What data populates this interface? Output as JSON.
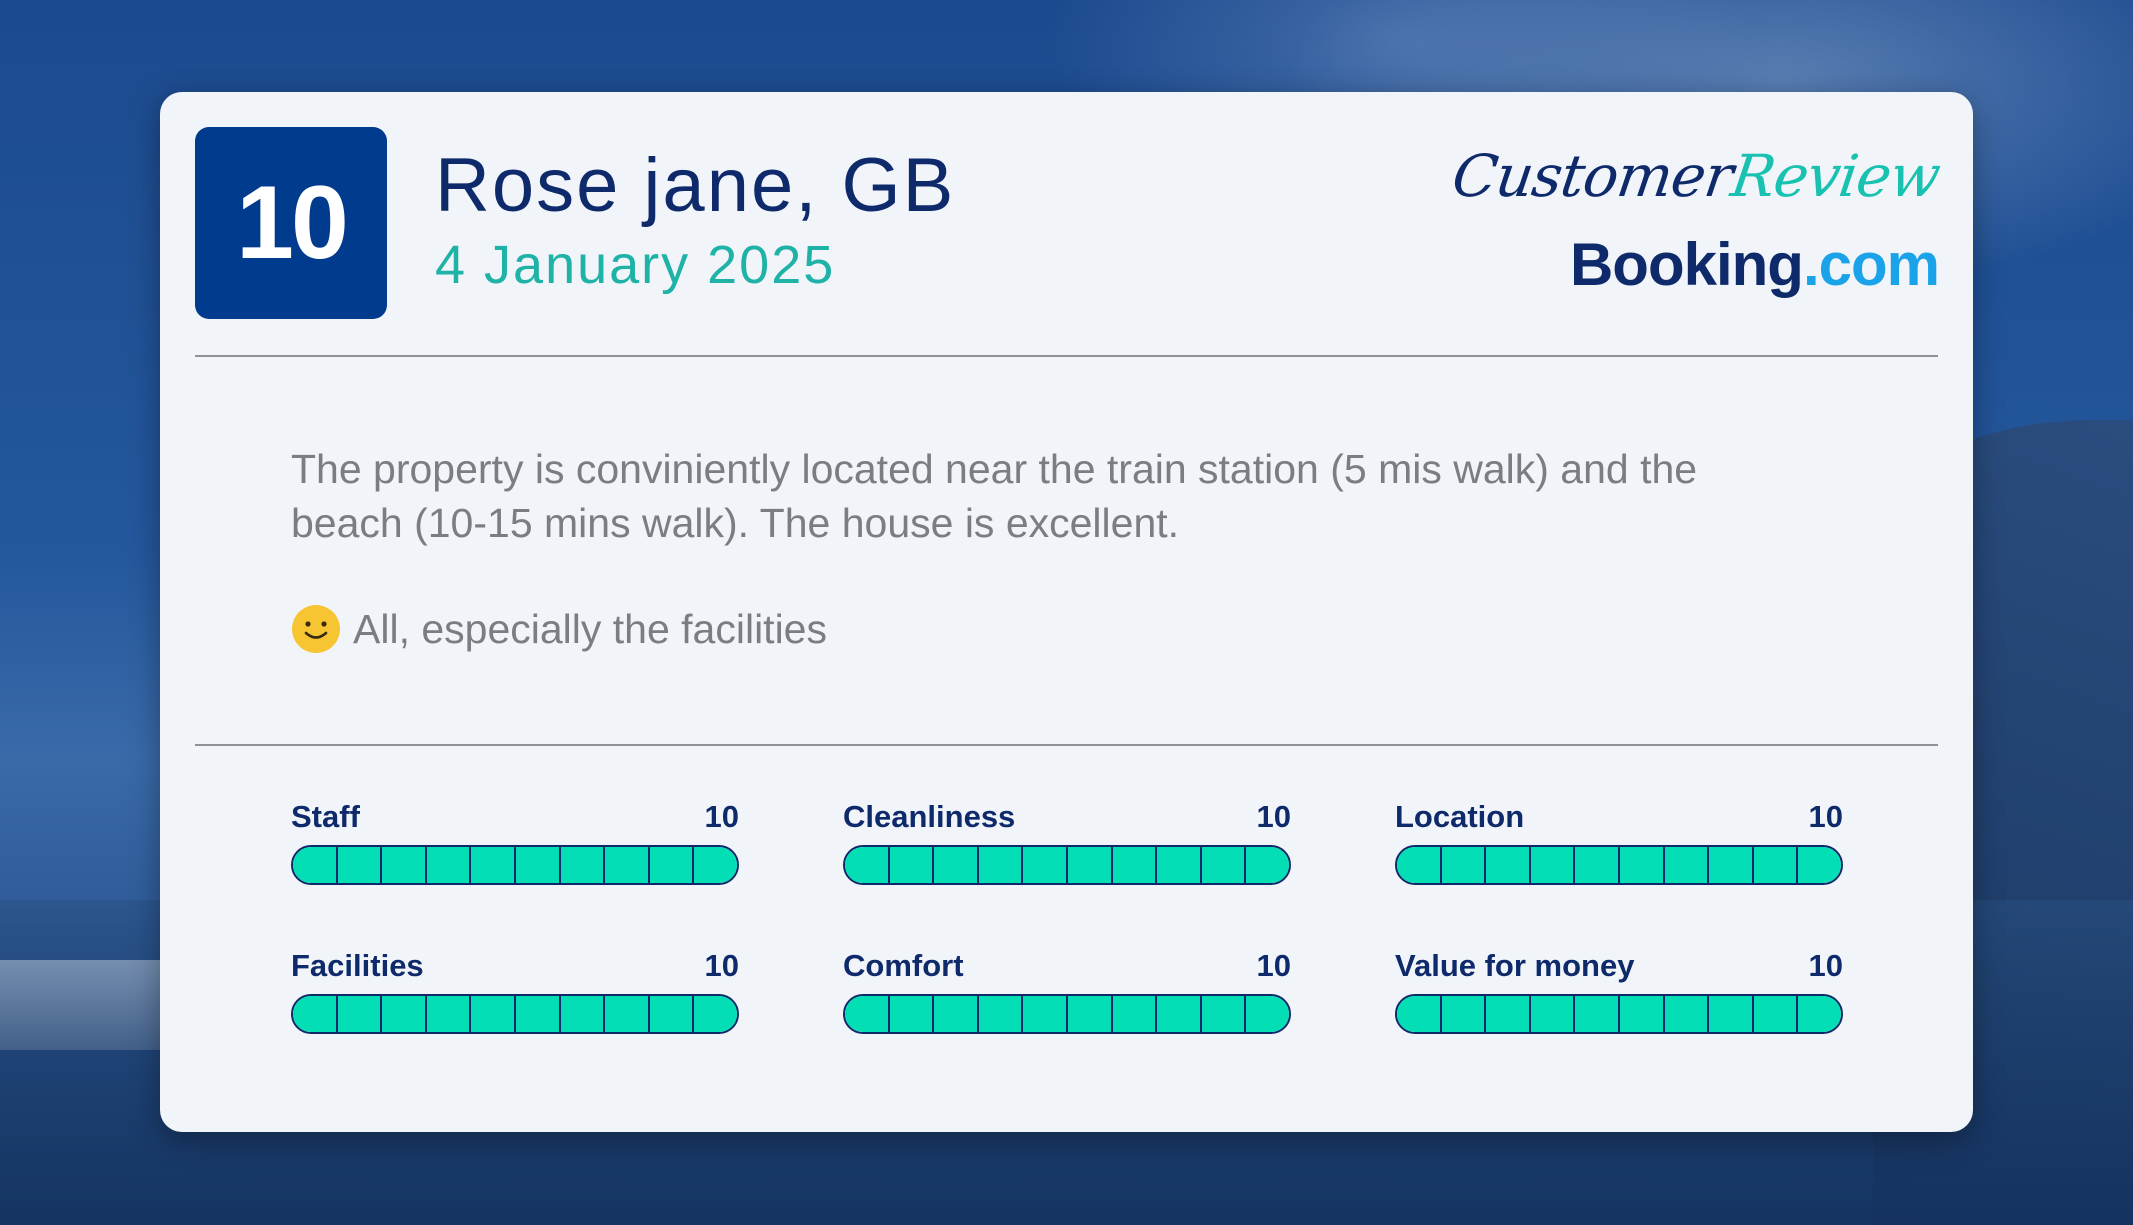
{
  "review": {
    "score": "10",
    "reviewer": "Rose jane, GB",
    "date": "4 January 2025",
    "text": "The property is conviniently located near the train station (5 mis walk) and the beach (10-15 mins walk). The house is excellent.",
    "liked": "All, especially the facilities"
  },
  "logo": {
    "script_word1": "Customer",
    "script_word2": "Review",
    "brand_main": "Booking",
    "brand_suffix": ".com"
  },
  "ratings": [
    {
      "label": "Staff",
      "score": "10",
      "value": 10,
      "max": 10
    },
    {
      "label": "Cleanliness",
      "score": "10",
      "value": 10,
      "max": 10
    },
    {
      "label": "Location",
      "score": "10",
      "value": 10,
      "max": 10
    },
    {
      "label": "Facilities",
      "score": "10",
      "value": 10,
      "max": 10
    },
    {
      "label": "Comfort",
      "score": "10",
      "value": 10,
      "max": 10
    },
    {
      "label": "Value for money",
      "score": "10",
      "value": 10,
      "max": 10
    }
  ],
  "colors": {
    "navy": "#0e2a6b",
    "score_box": "#003b8e",
    "teal": "#1fb2a7",
    "bar_fill": "#03deb4",
    "booking_blue": "#1aa3e8"
  },
  "icons": {
    "liked": "smiley-face-icon"
  }
}
